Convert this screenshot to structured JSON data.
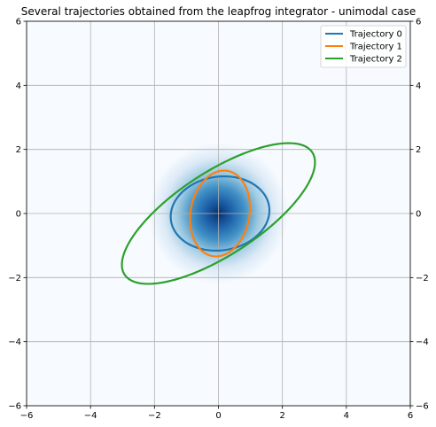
{
  "chart_data": {
    "type": "line",
    "title": "Several trajectories obtained from the leapfrog integrator - unimodal case",
    "xlabel": "",
    "ylabel": "",
    "xlim": [
      -6,
      6
    ],
    "ylim": [
      -6,
      6
    ],
    "x_ticks": [
      "−6",
      "−4",
      "−2",
      "0",
      "2",
      "4",
      "6"
    ],
    "y_ticks": [
      "−6",
      "−4",
      "−2",
      "0",
      "2",
      "4",
      "6"
    ],
    "grid": true,
    "legend_position": "top-right",
    "background": {
      "type": "heatmap",
      "description": "unimodal Gaussian density",
      "center": [
        0,
        0
      ],
      "colormap": "Blues",
      "color_low": "#f7fbff",
      "color_high": "#08306b"
    },
    "series": [
      {
        "name": "Trajectory 0",
        "color": "#1f77b4",
        "shape": "ellipse",
        "center": [
          0.05,
          0.0
        ],
        "semi_axes": [
          1.55,
          1.15
        ],
        "rotation_deg": 8
      },
      {
        "name": "Trajectory 1",
        "color": "#ff7f0e",
        "shape": "ellipse",
        "center": [
          0.05,
          0.0
        ],
        "semi_axes": [
          1.35,
          0.92
        ],
        "rotation_deg": 80
      },
      {
        "name": "Trajectory 2",
        "color": "#2ca02c",
        "shape": "ellipse",
        "center": [
          0.0,
          0.0
        ],
        "semi_axes": [
          3.5,
          1.3
        ],
        "rotation_deg": 33
      }
    ]
  }
}
